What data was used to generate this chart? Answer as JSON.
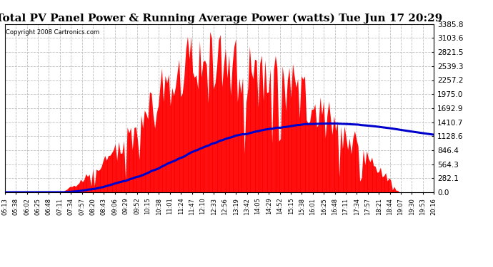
{
  "title": "Total PV Panel Power & Running Average Power (watts) Tue Jun 17 20:29",
  "copyright": "Copyright 2008 Cartronics.com",
  "ylabel_values": [
    0.0,
    282.1,
    564.3,
    846.4,
    1128.6,
    1410.7,
    1692.9,
    1975.0,
    2257.2,
    2539.3,
    2821.5,
    3103.6,
    3385.8
  ],
  "ymax": 3385.8,
  "ymin": 0.0,
  "background_color": "#ffffff",
  "plot_bg_color": "#ffffff",
  "grid_color": "#bbbbbb",
  "bar_color": "#ff0000",
  "avg_line_color": "#0000cc",
  "title_fontsize": 11,
  "copyright_fontsize": 6,
  "xtick_fontsize": 6,
  "ytick_fontsize": 7.5,
  "x_tick_labels": [
    "05:13",
    "05:38",
    "06:02",
    "06:25",
    "06:48",
    "07:11",
    "07:34",
    "07:57",
    "08:20",
    "08:43",
    "09:06",
    "09:29",
    "09:52",
    "10:15",
    "10:38",
    "11:01",
    "11:24",
    "11:47",
    "12:10",
    "12:33",
    "12:56",
    "13:19",
    "13:42",
    "14:05",
    "14:29",
    "14:52",
    "15:15",
    "15:38",
    "16:01",
    "16:25",
    "16:48",
    "17:11",
    "17:34",
    "17:57",
    "18:21",
    "18:44",
    "19:07",
    "19:30",
    "19:53",
    "20:16"
  ]
}
